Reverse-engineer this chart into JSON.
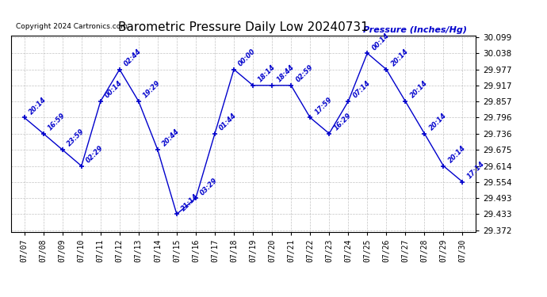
{
  "title": "Barometric Pressure Daily Low 20240731",
  "ylabel": "Pressure (Inches/Hg)",
  "copyright": "Copyright 2024 Cartronics.com",
  "line_color": "#0000cc",
  "background_color": "#ffffff",
  "grid_color": "#aaaaaa",
  "x_labels": [
    "07/07",
    "07/08",
    "07/09",
    "07/10",
    "07/11",
    "07/12",
    "07/13",
    "07/14",
    "07/15",
    "07/16",
    "07/17",
    "07/18",
    "07/19",
    "07/20",
    "07/21",
    "07/22",
    "07/23",
    "07/24",
    "07/25",
    "07/26",
    "07/27",
    "07/28",
    "07/29",
    "07/30"
  ],
  "y_values": [
    29.796,
    29.736,
    29.675,
    29.614,
    29.857,
    29.977,
    29.857,
    29.675,
    29.433,
    29.493,
    29.736,
    29.977,
    29.917,
    29.917,
    29.917,
    29.796,
    29.736,
    29.857,
    30.038,
    29.977,
    29.857,
    29.736,
    29.614,
    29.554
  ],
  "point_labels": [
    "20:14",
    "16:59",
    "23:59",
    "02:29",
    "00:14",
    "02:44",
    "19:29",
    "20:44",
    "21:14",
    "03:29",
    "01:44",
    "00:00",
    "18:14",
    "18:44",
    "02:59",
    "17:59",
    "16:29",
    "07:14",
    "00:14",
    "20:14",
    "20:14",
    "20:14",
    "20:14",
    "17:14"
  ],
  "ylim_min": 29.372,
  "ylim_max": 30.099,
  "yticks": [
    29.372,
    29.433,
    29.493,
    29.554,
    29.614,
    29.675,
    29.736,
    29.796,
    29.857,
    29.917,
    29.977,
    30.038,
    30.099
  ],
  "figwidth": 6.9,
  "figheight": 3.75,
  "dpi": 100
}
